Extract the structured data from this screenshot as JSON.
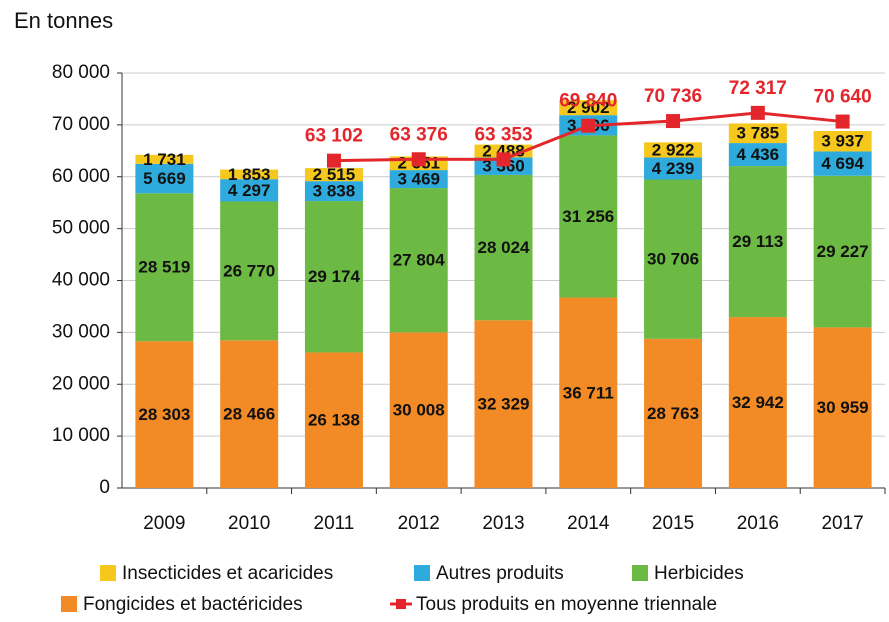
{
  "chart_data": {
    "type": "bar",
    "stacked": true,
    "y_label": "En tonnes",
    "categories": [
      "2009",
      "2010",
      "2011",
      "2012",
      "2013",
      "2014",
      "2015",
      "2016",
      "2017"
    ],
    "series": [
      {
        "name": "Fongicides et bactéricides",
        "color": "#f28a26",
        "values": [
          28303,
          28466,
          26138,
          30008,
          32329,
          36711,
          28763,
          32942,
          30959
        ],
        "value_labels": [
          "28 303",
          "28 466",
          "26 138",
          "30 008",
          "32 329",
          "36 711",
          "28 763",
          "32 942",
          "30 959"
        ]
      },
      {
        "name": "Herbicides",
        "color": "#6cb944",
        "values": [
          28519,
          26770,
          29174,
          27804,
          28024,
          31256,
          30706,
          29113,
          29227
        ],
        "value_labels": [
          "28 519",
          "26 770",
          "29 174",
          "27 804",
          "28 024",
          "31 256",
          "30 706",
          "29 113",
          "29 227"
        ]
      },
      {
        "name": "Autres produits",
        "color": "#2eaadc",
        "values": [
          5669,
          4297,
          3838,
          3469,
          3360,
          3906,
          4239,
          4436,
          4694
        ],
        "value_labels": [
          "5 669",
          "4 297",
          "3 838",
          "3 469",
          "3 360",
          "3 906",
          "4 239",
          "4 436",
          "4 694"
        ]
      },
      {
        "name": "Insecticides et acaricides",
        "color": "#f6c71c",
        "values": [
          1731,
          1853,
          2515,
          2651,
          2488,
          2902,
          2922,
          3785,
          3937
        ],
        "value_labels": [
          "1 731",
          "1 853",
          "2 515",
          "2 651",
          "2 488",
          "2 902",
          "2 922",
          "3 785",
          "3 937"
        ]
      },
      {
        "name": "Tous produits en moyenne triennale",
        "type": "line",
        "color": "#e3262b",
        "values": [
          null,
          null,
          63102,
          63376,
          63353,
          69840,
          70736,
          72317,
          70640
        ],
        "value_labels": [
          null,
          null,
          "63 102",
          "63 376",
          "63 353",
          "69 840",
          "70 736",
          "72 317",
          "70 640"
        ]
      }
    ],
    "ylim": [
      0,
      80000
    ],
    "yticks": [
      0,
      {
        "value": 10000,
        "label": "10 000"
      },
      {
        "value": 20000,
        "label": "20 000"
      },
      {
        "value": 30000,
        "label": "30 000"
      },
      {
        "value": 40000,
        "label": "40 000"
      },
      {
        "value": 50000,
        "label": "50 000"
      },
      {
        "value": 60000,
        "label": "60 000"
      },
      {
        "value": 70000,
        "label": "70 000"
      },
      {
        "value": 80000,
        "label": "80 000"
      }
    ],
    "grid": true
  }
}
